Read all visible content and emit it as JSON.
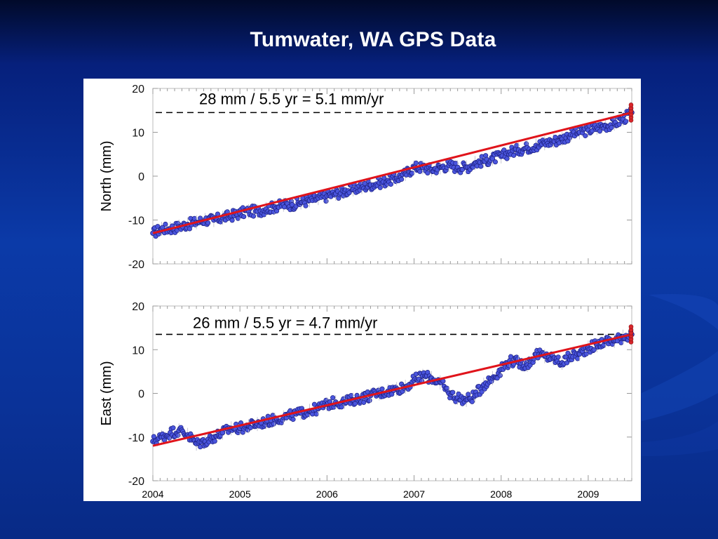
{
  "title": "Tumwater, WA GPS Data",
  "colors": {
    "point_fill": "#4a55dd",
    "point_stroke": "#1c1f80",
    "trend_line": "#e0141b",
    "background": "#0a3298"
  },
  "chart_data": [
    {
      "type": "scatter",
      "ylabel": "North (mm)",
      "ylim": [
        -20,
        20
      ],
      "y_ticks": [
        "20",
        "10",
        "0",
        "-10",
        "-20"
      ],
      "xlim": [
        2004.0,
        2009.5
      ],
      "annotation": "28 mm / 5.5 yr = 5.1 mm/yr",
      "reference_level": 14.5,
      "trend": {
        "x": [
          2004.0,
          2009.5
        ],
        "y": [
          -13,
          14.5
        ]
      },
      "series": [
        {
          "x": [
            2004.0,
            2004.1,
            2004.2,
            2004.3,
            2004.4,
            2004.5,
            2004.6,
            2004.7,
            2004.8,
            2004.9,
            2005.0,
            2005.1,
            2005.2,
            2005.3,
            2005.4,
            2005.5,
            2005.6,
            2005.7,
            2005.8,
            2005.9,
            2006.0,
            2006.1,
            2006.2,
            2006.3,
            2006.4,
            2006.5,
            2006.6,
            2006.7,
            2006.8,
            2006.9,
            2007.0,
            2007.1,
            2007.2,
            2007.3,
            2007.4,
            2007.5,
            2007.6,
            2007.7,
            2007.8,
            2007.9,
            2008.0,
            2008.1,
            2008.2,
            2008.3,
            2008.4,
            2008.5,
            2008.6,
            2008.7,
            2008.8,
            2008.9,
            2009.0,
            2009.1,
            2009.2,
            2009.3,
            2009.4,
            2009.5
          ],
          "y": [
            -13,
            -12,
            -12,
            -11.5,
            -11,
            -10.5,
            -10,
            -10,
            -9.5,
            -9,
            -8.5,
            -8,
            -8,
            -7.5,
            -7,
            -6.5,
            -6.5,
            -6,
            -5.5,
            -5,
            -4.5,
            -4,
            -3.5,
            -3,
            -2.5,
            -2,
            -1.5,
            -1,
            -0.5,
            0.5,
            2,
            2,
            1.5,
            2,
            2.5,
            2,
            2,
            3,
            3.5,
            4,
            4.5,
            5.5,
            6,
            6.5,
            7,
            7.5,
            8,
            8.5,
            9.5,
            10,
            10.5,
            11,
            11.5,
            12,
            13,
            14.5
          ]
        }
      ]
    },
    {
      "type": "scatter",
      "ylabel": "East (mm)",
      "ylim": [
        -20,
        20
      ],
      "y_ticks": [
        "20",
        "10",
        "0",
        "-10",
        "-20"
      ],
      "xlim": [
        2004.0,
        2009.5
      ],
      "annotation": "26 mm / 5.5 yr = 4.7 mm/yr",
      "reference_level": 13.5,
      "trend": {
        "x": [
          2004.0,
          2009.5
        ],
        "y": [
          -12,
          13.5
        ]
      },
      "x_tick_labels": [
        "2004",
        "2005",
        "2006",
        "2007",
        "2008",
        "2009"
      ],
      "series": [
        {
          "x": [
            2004.0,
            2004.1,
            2004.2,
            2004.3,
            2004.4,
            2004.5,
            2004.6,
            2004.7,
            2004.8,
            2004.9,
            2005.0,
            2005.1,
            2005.2,
            2005.3,
            2005.4,
            2005.5,
            2005.6,
            2005.7,
            2005.8,
            2005.9,
            2006.0,
            2006.1,
            2006.2,
            2006.3,
            2006.4,
            2006.5,
            2006.6,
            2006.7,
            2006.8,
            2006.9,
            2007.0,
            2007.1,
            2007.2,
            2007.3,
            2007.4,
            2007.5,
            2007.6,
            2007.7,
            2007.8,
            2007.9,
            2008.0,
            2008.1,
            2008.2,
            2008.3,
            2008.4,
            2008.5,
            2008.6,
            2008.7,
            2008.8,
            2008.9,
            2009.0,
            2009.1,
            2009.2,
            2009.3,
            2009.4,
            2009.5
          ],
          "y": [
            -11,
            -10,
            -9,
            -8.5,
            -9.5,
            -11.5,
            -11,
            -10,
            -9,
            -8,
            -8,
            -7.5,
            -7,
            -6.5,
            -6,
            -5.5,
            -5,
            -4.5,
            -4,
            -3.5,
            -2.5,
            -2,
            -2,
            -1.5,
            -1,
            -0.5,
            0,
            0.5,
            1,
            1.5,
            3,
            4,
            3.5,
            2.5,
            0,
            -1,
            -1.5,
            -0.5,
            2,
            3.5,
            5.5,
            7.5,
            7,
            6.5,
            9,
            8.5,
            8,
            7,
            8.5,
            9,
            10.5,
            11,
            12,
            12,
            13,
            13.5
          ]
        }
      ]
    }
  ]
}
